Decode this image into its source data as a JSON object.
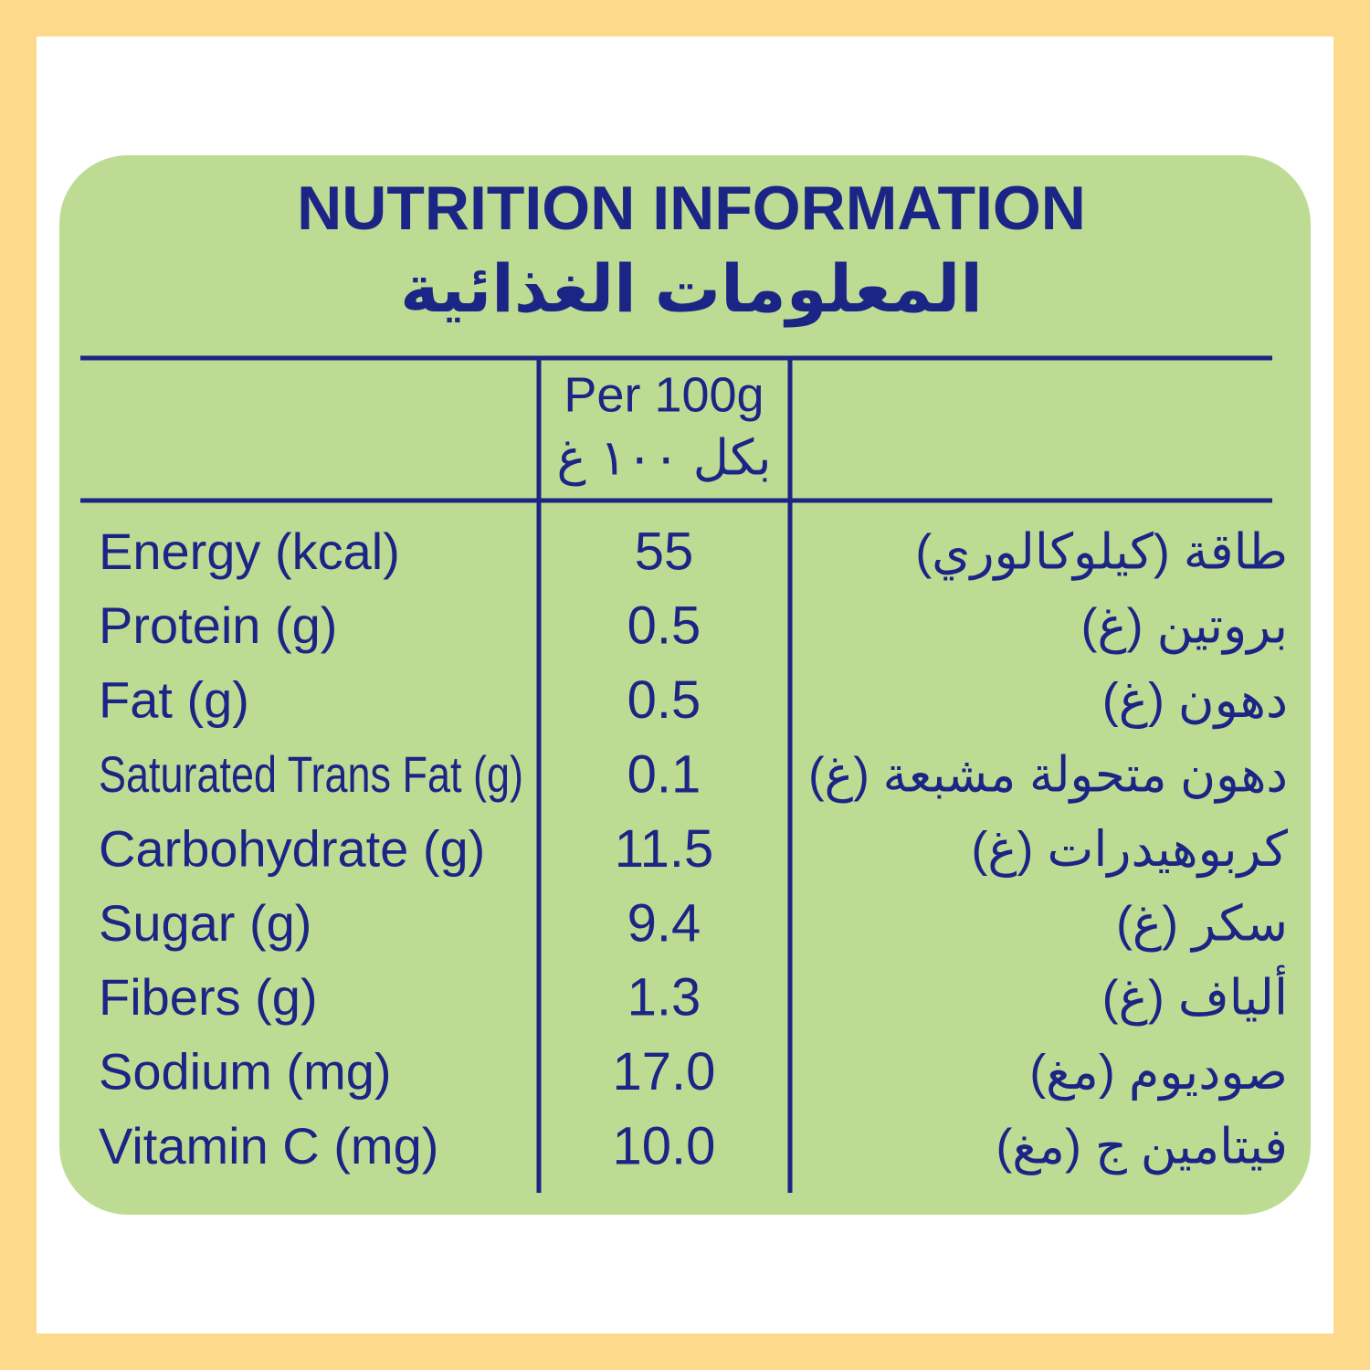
{
  "header": {
    "title": "NUTRITION INFORMATION",
    "title_ar": "المعلومات الغذائية"
  },
  "table": {
    "column_header": {
      "en": "Per 100g",
      "ar": "بكل ١٠٠ غ"
    },
    "rows": [
      [
        "Energy (kcal)",
        "55",
        "طاقة (كيلوكالوري)"
      ],
      [
        "Protein (g)",
        "0.5",
        "بروتين (غ)"
      ],
      [
        "Fat (g)",
        "0.5",
        "دهون (غ)"
      ],
      [
        "Saturated Trans Fat (g)",
        "0.1",
        "دهون متحولة مشبعة (غ)"
      ],
      [
        "Carbohydrate (g)",
        "11.5",
        "كربوهيدرات (غ)"
      ],
      [
        "Sugar (g)",
        "9.4",
        "سكر (غ)"
      ],
      [
        "Fibers (g)",
        "1.3",
        "ألياف (غ)"
      ],
      [
        "Sodium (mg)",
        "17.0",
        "صوديوم (مغ)"
      ],
      [
        "Vitamin C (mg)",
        "10.0",
        "فيتامين ج (مغ)"
      ]
    ]
  }
}
